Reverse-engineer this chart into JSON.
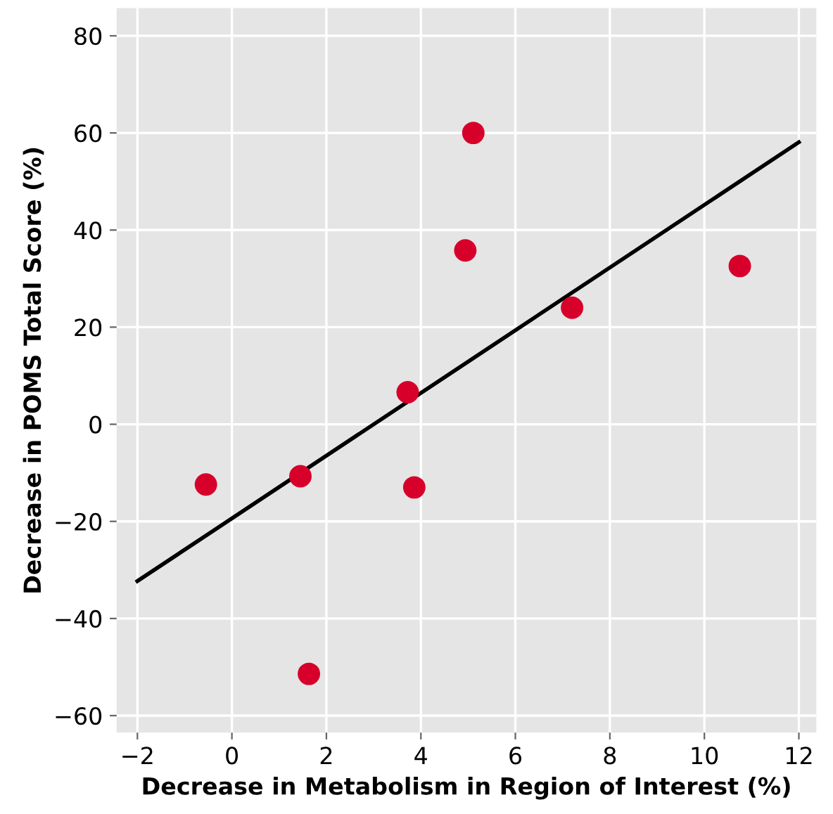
{
  "chart_data": {
    "type": "scatter",
    "xlabel": "Decrease in Metabolism in Region of Interest (%)",
    "ylabel": "Decrease in POMS Total Score (%)",
    "x": [
      -0.55,
      1.45,
      1.63,
      3.72,
      3.86,
      4.94,
      5.11,
      7.2,
      10.75
    ],
    "series": [
      {
        "color": "#d7002a",
        "values": [
          -12.4,
          -10.7,
          -51.4,
          6.6,
          -13,
          35.8,
          60,
          24,
          32.6
        ]
      },
      {
        "type": "line",
        "marker": "none",
        "color": "#000000",
        "x": [
          -2,
          12
        ],
        "values": [
          -32.3,
          58.1
        ]
      }
    ],
    "xlim": [
      -2.44,
      12.37
    ],
    "ylim": [
      -63.5,
      85.7
    ],
    "xticks": [
      {
        "value": -2,
        "label": "−2"
      },
      0,
      2,
      4,
      6,
      8,
      10,
      12
    ],
    "yticks": [
      {
        "value": -60,
        "label": "−60"
      },
      {
        "value": -40,
        "label": "−40"
      },
      {
        "value": -20,
        "label": "−20"
      },
      0,
      20,
      40,
      60,
      80
    ],
    "grid": true,
    "marker": "circle"
  }
}
